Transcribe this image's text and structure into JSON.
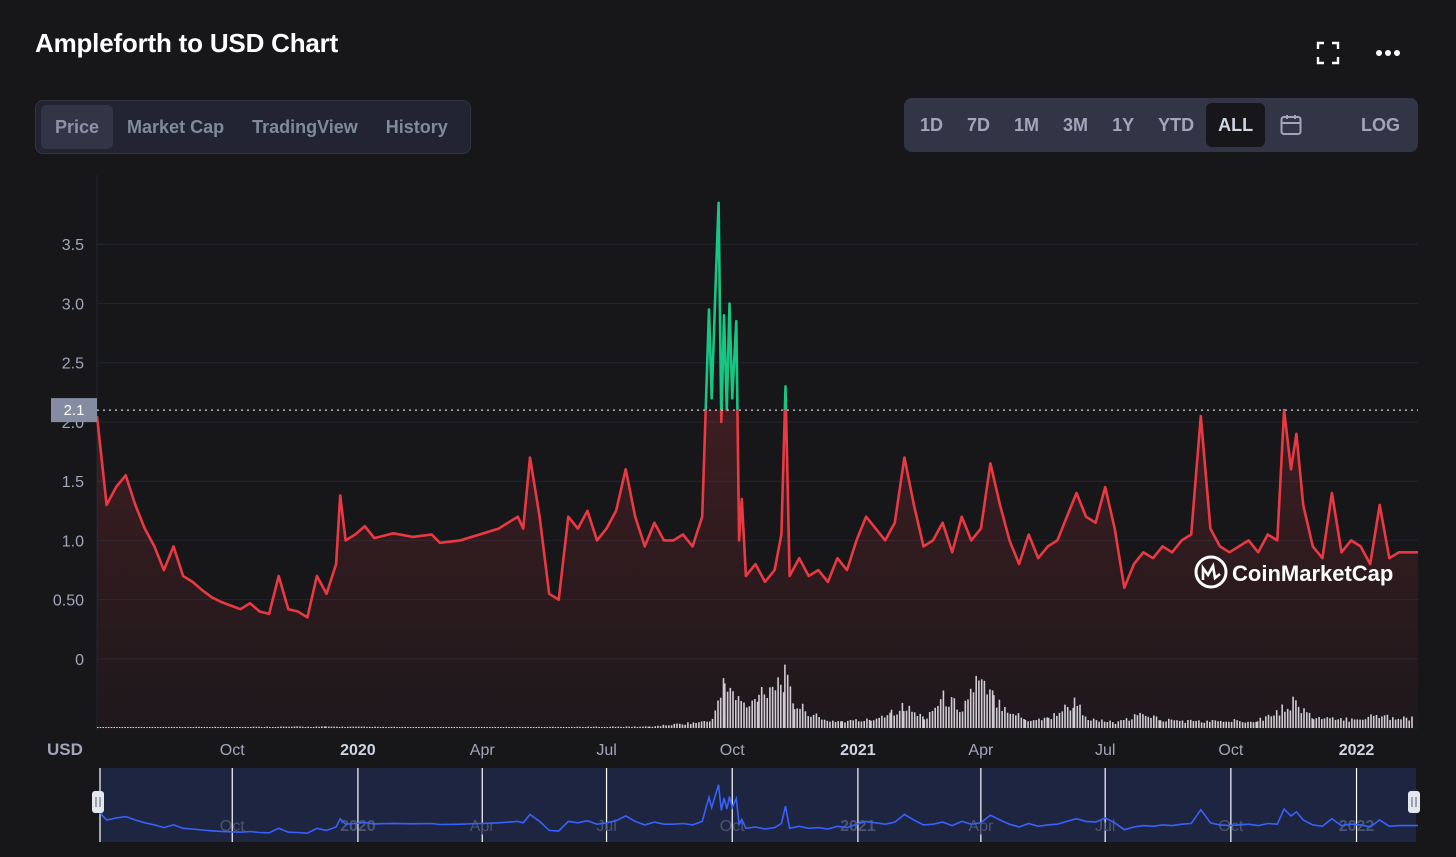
{
  "header": {
    "title": "Ampleforth to USD Chart",
    "fullscreen_icon": "fullscreen-icon",
    "more_icon": "more-dots-icon"
  },
  "tabs": [
    {
      "label": "Price",
      "active": true
    },
    {
      "label": "Market Cap",
      "active": false
    },
    {
      "label": "TradingView",
      "active": false
    },
    {
      "label": "History",
      "active": false
    }
  ],
  "ranges": [
    {
      "label": "1D",
      "active": false
    },
    {
      "label": "7D",
      "active": false
    },
    {
      "label": "1M",
      "active": false
    },
    {
      "label": "3M",
      "active": false
    },
    {
      "label": "1Y",
      "active": false
    },
    {
      "label": "YTD",
      "active": false
    },
    {
      "label": "ALL",
      "active": true
    }
  ],
  "calendar_icon": "calendar-icon",
  "log_label": "LOG",
  "watermark": "CoinMarketCap",
  "colors": {
    "background": "#17171a",
    "up": "#16c784",
    "down": "#ea3943",
    "navigator": "#3861fb",
    "volume": "#d0d3da"
  },
  "chart_data": {
    "type": "line",
    "title": "Ampleforth to USD Chart",
    "currency_label": "USD",
    "reference_price": 2.1,
    "reference_label": "2.1",
    "y_ticks": [
      "0",
      "0.50",
      "1.0",
      "1.5",
      "2.0",
      "2.5",
      "3.0",
      "3.5"
    ],
    "y_tick_values": [
      0,
      0.5,
      1.0,
      1.5,
      2.0,
      2.5,
      3.0,
      3.5
    ],
    "ylim": [
      -0.6,
      4.0
    ],
    "xlim": [
      "2019-06-24",
      "2022-02-15"
    ],
    "x_ticks": [
      {
        "label": "Oct",
        "date": "2019-10-01",
        "bold": false
      },
      {
        "label": "2020",
        "date": "2020-01-01",
        "bold": true
      },
      {
        "label": "Apr",
        "date": "2020-04-01",
        "bold": false
      },
      {
        "label": "Jul",
        "date": "2020-07-01",
        "bold": false
      },
      {
        "label": "Oct",
        "date": "2020-10-01",
        "bold": false
      },
      {
        "label": "2021",
        "date": "2021-01-01",
        "bold": true
      },
      {
        "label": "Apr",
        "date": "2021-04-01",
        "bold": false
      },
      {
        "label": "Jul",
        "date": "2021-07-01",
        "bold": false
      },
      {
        "label": "Oct",
        "date": "2021-10-01",
        "bold": false
      },
      {
        "label": "2022",
        "date": "2022-01-01",
        "bold": true
      }
    ],
    "grid": true,
    "series": [
      {
        "name": "Price",
        "points": [
          [
            "2019-06-24",
            2.05
          ],
          [
            "2019-07-01",
            1.3
          ],
          [
            "2019-07-08",
            1.45
          ],
          [
            "2019-07-15",
            1.55
          ],
          [
            "2019-07-22",
            1.3
          ],
          [
            "2019-07-29",
            1.1
          ],
          [
            "2019-08-05",
            0.95
          ],
          [
            "2019-08-12",
            0.75
          ],
          [
            "2019-08-19",
            0.95
          ],
          [
            "2019-08-26",
            0.7
          ],
          [
            "2019-09-02",
            0.65
          ],
          [
            "2019-09-09",
            0.58
          ],
          [
            "2019-09-16",
            0.52
          ],
          [
            "2019-09-23",
            0.48
          ],
          [
            "2019-09-30",
            0.45
          ],
          [
            "2019-10-07",
            0.42
          ],
          [
            "2019-10-14",
            0.47
          ],
          [
            "2019-10-21",
            0.4
          ],
          [
            "2019-10-28",
            0.38
          ],
          [
            "2019-11-04",
            0.7
          ],
          [
            "2019-11-11",
            0.42
          ],
          [
            "2019-11-18",
            0.4
          ],
          [
            "2019-11-25",
            0.35
          ],
          [
            "2019-12-02",
            0.7
          ],
          [
            "2019-12-09",
            0.55
          ],
          [
            "2019-12-16",
            0.8
          ],
          [
            "2019-12-19",
            1.38
          ],
          [
            "2019-12-23",
            1.0
          ],
          [
            "2019-12-30",
            1.05
          ],
          [
            "2020-01-06",
            1.12
          ],
          [
            "2020-01-13",
            1.02
          ],
          [
            "2020-01-27",
            1.06
          ],
          [
            "2020-02-10",
            1.03
          ],
          [
            "2020-02-24",
            1.05
          ],
          [
            "2020-03-01",
            0.98
          ],
          [
            "2020-03-16",
            1.0
          ],
          [
            "2020-03-30",
            1.05
          ],
          [
            "2020-04-13",
            1.1
          ],
          [
            "2020-04-27",
            1.2
          ],
          [
            "2020-05-01",
            1.1
          ],
          [
            "2020-05-06",
            1.7
          ],
          [
            "2020-05-13",
            1.2
          ],
          [
            "2020-05-20",
            0.55
          ],
          [
            "2020-05-27",
            0.5
          ],
          [
            "2020-06-03",
            1.2
          ],
          [
            "2020-06-10",
            1.1
          ],
          [
            "2020-06-17",
            1.25
          ],
          [
            "2020-06-24",
            1.0
          ],
          [
            "2020-07-01",
            1.1
          ],
          [
            "2020-07-08",
            1.25
          ],
          [
            "2020-07-15",
            1.6
          ],
          [
            "2020-07-22",
            1.2
          ],
          [
            "2020-07-29",
            0.95
          ],
          [
            "2020-08-05",
            1.15
          ],
          [
            "2020-08-12",
            1.0
          ],
          [
            "2020-08-19",
            1.0
          ],
          [
            "2020-08-26",
            1.05
          ],
          [
            "2020-09-02",
            0.95
          ],
          [
            "2020-09-09",
            1.2
          ],
          [
            "2020-09-14",
            2.95
          ],
          [
            "2020-09-16",
            2.2
          ],
          [
            "2020-09-19",
            3.2
          ],
          [
            "2020-09-21",
            3.85
          ],
          [
            "2020-09-23",
            2.0
          ],
          [
            "2020-09-25",
            2.9
          ],
          [
            "2020-09-27",
            2.1
          ],
          [
            "2020-09-29",
            3.0
          ],
          [
            "2020-10-01",
            2.2
          ],
          [
            "2020-10-04",
            2.85
          ],
          [
            "2020-10-06",
            1.0
          ],
          [
            "2020-10-08",
            1.35
          ],
          [
            "2020-10-11",
            0.7
          ],
          [
            "2020-10-18",
            0.8
          ],
          [
            "2020-10-25",
            0.65
          ],
          [
            "2020-11-01",
            0.75
          ],
          [
            "2020-11-06",
            1.05
          ],
          [
            "2020-11-09",
            2.3
          ],
          [
            "2020-11-12",
            0.7
          ],
          [
            "2020-11-19",
            0.85
          ],
          [
            "2020-11-26",
            0.7
          ],
          [
            "2020-12-03",
            0.75
          ],
          [
            "2020-12-10",
            0.65
          ],
          [
            "2020-12-17",
            0.85
          ],
          [
            "2020-12-24",
            0.75
          ],
          [
            "2020-12-31",
            1.0
          ],
          [
            "2021-01-07",
            1.2
          ],
          [
            "2021-01-14",
            1.1
          ],
          [
            "2021-01-21",
            1.0
          ],
          [
            "2021-01-28",
            1.15
          ],
          [
            "2021-02-04",
            1.7
          ],
          [
            "2021-02-11",
            1.3
          ],
          [
            "2021-02-18",
            0.95
          ],
          [
            "2021-02-25",
            1.0
          ],
          [
            "2021-03-04",
            1.15
          ],
          [
            "2021-03-11",
            0.9
          ],
          [
            "2021-03-18",
            1.2
          ],
          [
            "2021-03-25",
            1.0
          ],
          [
            "2021-04-01",
            1.1
          ],
          [
            "2021-04-08",
            1.65
          ],
          [
            "2021-04-15",
            1.3
          ],
          [
            "2021-04-22",
            1.0
          ],
          [
            "2021-04-29",
            0.8
          ],
          [
            "2021-05-06",
            1.05
          ],
          [
            "2021-05-13",
            0.85
          ],
          [
            "2021-05-20",
            0.95
          ],
          [
            "2021-05-27",
            1.0
          ],
          [
            "2021-06-03",
            1.2
          ],
          [
            "2021-06-10",
            1.4
          ],
          [
            "2021-06-17",
            1.2
          ],
          [
            "2021-06-24",
            1.15
          ],
          [
            "2021-07-01",
            1.45
          ],
          [
            "2021-07-08",
            1.1
          ],
          [
            "2021-07-15",
            0.6
          ],
          [
            "2021-07-22",
            0.8
          ],
          [
            "2021-07-29",
            0.9
          ],
          [
            "2021-08-05",
            0.85
          ],
          [
            "2021-08-12",
            0.95
          ],
          [
            "2021-08-19",
            0.9
          ],
          [
            "2021-08-26",
            1.0
          ],
          [
            "2021-09-02",
            1.05
          ],
          [
            "2021-09-09",
            2.05
          ],
          [
            "2021-09-16",
            1.1
          ],
          [
            "2021-09-23",
            0.95
          ],
          [
            "2021-09-30",
            0.9
          ],
          [
            "2021-10-07",
            0.95
          ],
          [
            "2021-10-14",
            1.0
          ],
          [
            "2021-10-21",
            0.9
          ],
          [
            "2021-10-28",
            1.05
          ],
          [
            "2021-11-04",
            1.0
          ],
          [
            "2021-11-09",
            2.1
          ],
          [
            "2021-11-14",
            1.6
          ],
          [
            "2021-11-18",
            1.9
          ],
          [
            "2021-11-23",
            1.3
          ],
          [
            "2021-11-30",
            0.95
          ],
          [
            "2021-12-07",
            0.85
          ],
          [
            "2021-12-14",
            1.4
          ],
          [
            "2021-12-21",
            0.9
          ],
          [
            "2021-12-28",
            1.0
          ],
          [
            "2022-01-04",
            0.95
          ],
          [
            "2022-01-11",
            0.8
          ],
          [
            "2022-01-18",
            1.3
          ],
          [
            "2022-01-25",
            0.85
          ],
          [
            "2022-02-01",
            0.9
          ],
          [
            "2022-02-15",
            0.9
          ]
        ]
      },
      {
        "name": "Volume",
        "points": [
          [
            "2019-06-24",
            0.01
          ],
          [
            "2019-12-08",
            0.02
          ],
          [
            "2020-03-01",
            0.01
          ],
          [
            "2020-08-01",
            0.02
          ],
          [
            "2020-09-14",
            0.1
          ],
          [
            "2020-09-20",
            0.35
          ],
          [
            "2020-09-25",
            0.7
          ],
          [
            "2020-10-03",
            0.45
          ],
          [
            "2020-10-13",
            0.3
          ],
          [
            "2020-10-20",
            0.55
          ],
          [
            "2020-11-08",
            0.75
          ],
          [
            "2020-11-15",
            0.35
          ],
          [
            "2020-11-25",
            0.25
          ],
          [
            "2020-12-05",
            0.12
          ],
          [
            "2020-12-20",
            0.1
          ],
          [
            "2021-01-10",
            0.12
          ],
          [
            "2021-01-25",
            0.25
          ],
          [
            "2021-02-03",
            0.32
          ],
          [
            "2021-02-18",
            0.15
          ],
          [
            "2021-03-04",
            0.45
          ],
          [
            "2021-03-18",
            0.3
          ],
          [
            "2021-03-28",
            0.7
          ],
          [
            "2021-04-10",
            0.45
          ],
          [
            "2021-04-20",
            0.3
          ],
          [
            "2021-05-03",
            0.12
          ],
          [
            "2021-05-20",
            0.15
          ],
          [
            "2021-06-08",
            0.38
          ],
          [
            "2021-06-20",
            0.12
          ],
          [
            "2021-07-10",
            0.08
          ],
          [
            "2021-07-30",
            0.22
          ],
          [
            "2021-08-10",
            0.12
          ],
          [
            "2021-09-05",
            0.1
          ],
          [
            "2021-09-25",
            0.1
          ],
          [
            "2021-10-20",
            0.12
          ],
          [
            "2021-11-05",
            0.25
          ],
          [
            "2021-11-15",
            0.4
          ],
          [
            "2021-11-30",
            0.15
          ],
          [
            "2021-12-20",
            0.12
          ],
          [
            "2022-01-15",
            0.18
          ],
          [
            "2022-02-10",
            0.15
          ]
        ]
      }
    ]
  }
}
